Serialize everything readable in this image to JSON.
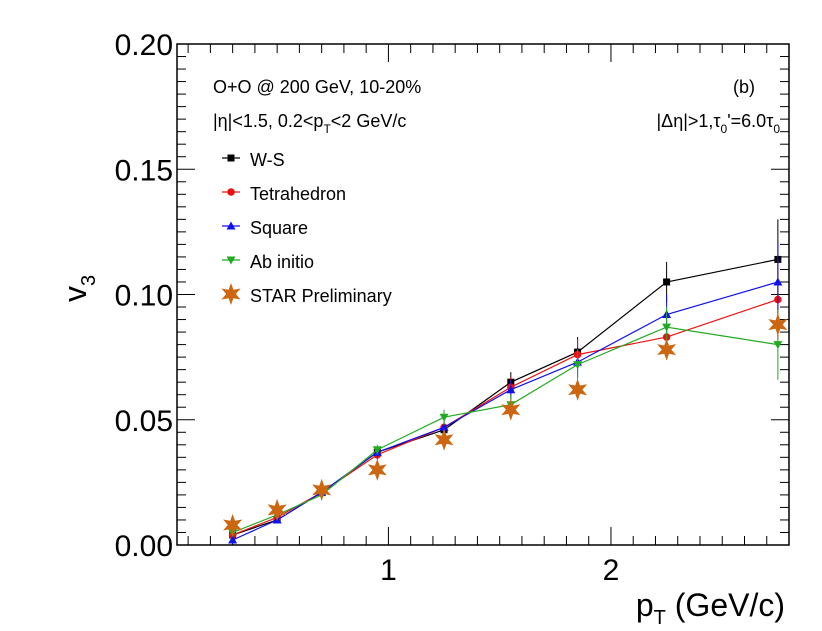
{
  "chart_data": {
    "type": "line",
    "title": "",
    "xlabel": "p_T (GeV/c)",
    "xlabel_main": "p",
    "xlabel_sub": "T",
    "xlabel_rest": " (GeV/c)",
    "ylabel": "v_3",
    "ylabel_main": "v",
    "ylabel_sub": "3",
    "xlim": [
      0.05,
      2.8
    ],
    "ylim": [
      0.0,
      0.2
    ],
    "x_ticks": [
      {
        "value": 1,
        "label": "1"
      },
      {
        "value": 2,
        "label": "2"
      }
    ],
    "y_ticks": [
      {
        "value": 0.0,
        "label": "0.00"
      },
      {
        "value": 0.05,
        "label": "0.05"
      },
      {
        "value": 0.1,
        "label": "0.10"
      },
      {
        "value": 0.15,
        "label": "0.15"
      },
      {
        "value": 0.2,
        "label": "0.20"
      }
    ],
    "annotations": {
      "system": "O+O @ 200 GeV, 10-20%",
      "panel": "(b)",
      "eta_cut": "|η|<1.5, 0.2<p",
      "eta_cut_sub": "T",
      "eta_cut_rest": "<2 GeV/c",
      "gap_a": "|Δη|>1,τ",
      "gap_sub1": "0",
      "gap_b": "'=6.0τ",
      "gap_sub2": "0"
    },
    "legend_position": "top-left",
    "series": [
      {
        "name": "W-S",
        "color": "#000000",
        "marker": "square",
        "line": true,
        "x": [
          0.3,
          0.5,
          0.7,
          0.95,
          1.25,
          1.55,
          1.85,
          2.25,
          2.75
        ],
        "y": [
          0.004,
          0.01,
          0.021,
          0.037,
          0.046,
          0.065,
          0.077,
          0.105,
          0.114
        ],
        "err": [
          0.001,
          0.001,
          0.002,
          0.002,
          0.003,
          0.004,
          0.006,
          0.008,
          0.016
        ]
      },
      {
        "name": "Tetrahedron",
        "color": "#ee1111",
        "marker": "circle",
        "line": true,
        "x": [
          0.3,
          0.5,
          0.7,
          0.95,
          1.25,
          1.55,
          1.85,
          2.25,
          2.75
        ],
        "y": [
          0.004,
          0.011,
          0.021,
          0.036,
          0.047,
          0.063,
          0.076,
          0.083,
          0.098
        ],
        "err": [
          0.001,
          0.001,
          0.002,
          0.002,
          0.003,
          0.004,
          0.006,
          0.008,
          0.016
        ]
      },
      {
        "name": "Square",
        "color": "#1111ee",
        "marker": "triangle-up",
        "line": true,
        "x": [
          0.3,
          0.5,
          0.7,
          0.95,
          1.25,
          1.55,
          1.85,
          2.25,
          2.75
        ],
        "y": [
          0.002,
          0.01,
          0.021,
          0.037,
          0.047,
          0.062,
          0.073,
          0.092,
          0.105
        ],
        "err": [
          0.001,
          0.001,
          0.002,
          0.002,
          0.003,
          0.004,
          0.006,
          0.008,
          0.016
        ]
      },
      {
        "name": "Ab initio",
        "color": "#22aa22",
        "marker": "triangle-down",
        "line": true,
        "x": [
          0.3,
          0.5,
          0.7,
          0.95,
          1.25,
          1.55,
          1.85,
          2.25,
          2.75
        ],
        "y": [
          0.005,
          0.012,
          0.02,
          0.038,
          0.051,
          0.056,
          0.072,
          0.087,
          0.08
        ],
        "err": [
          0.001,
          0.001,
          0.002,
          0.002,
          0.003,
          0.004,
          0.006,
          0.008,
          0.014
        ]
      },
      {
        "name": "STAR Preliminary",
        "color": "#cc6611",
        "marker": "star",
        "line": false,
        "x": [
          0.3,
          0.5,
          0.7,
          0.95,
          1.25,
          1.55,
          1.85,
          2.25,
          2.75
        ],
        "y": [
          0.008,
          0.014,
          0.022,
          0.03,
          0.042,
          0.054,
          0.062,
          0.078,
          0.088
        ],
        "err": [
          0.001,
          0.001,
          0.001,
          0.002,
          0.002,
          0.003,
          0.003,
          0.004,
          0.005
        ]
      }
    ]
  }
}
